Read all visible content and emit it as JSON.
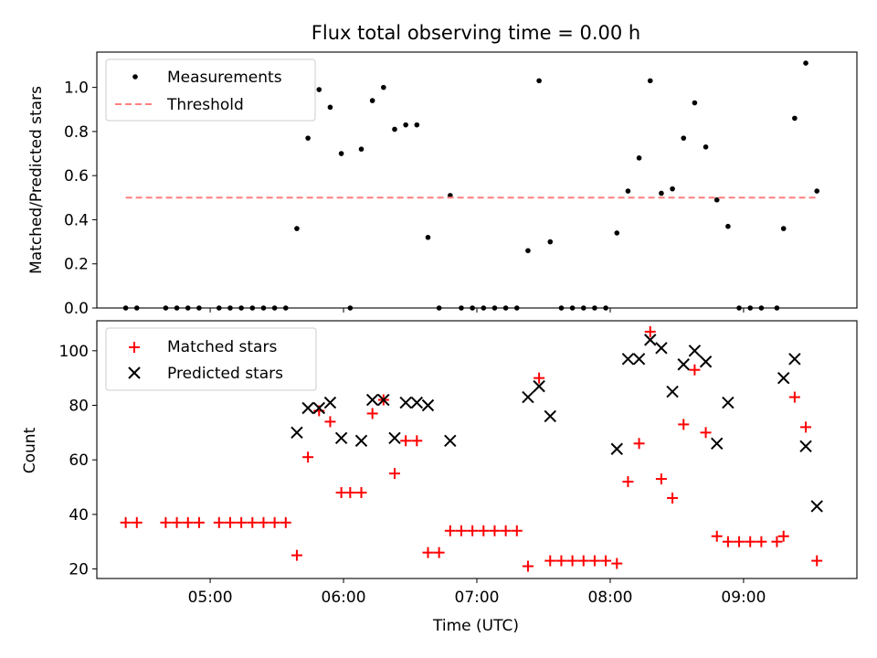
{
  "chart_data": {
    "title": "Flux total observing time = 0.00 h",
    "xlabel": "Time (UTC)",
    "x_tick_labels": [
      "05:00",
      "06:00",
      "07:00",
      "08:00",
      "09:00"
    ],
    "panels": [
      {
        "type": "scatter",
        "ylabel": "Matched/Predicted stars",
        "ylim": [
          0,
          1.16
        ],
        "y_ticks": [
          0.0,
          0.2,
          0.4,
          0.6,
          0.8,
          1.0
        ],
        "y_tick_labels": [
          "0.0",
          "0.2",
          "0.4",
          "0.6",
          "0.8",
          "1.0"
        ],
        "legend_position": "top-left",
        "series": [
          {
            "name": "Measurements",
            "marker": "dot",
            "color": "#000000",
            "points": [
              [
                "04:22",
                0.0
              ],
              [
                "04:27",
                0.0
              ],
              [
                "04:40",
                0.0
              ],
              [
                "04:45",
                0.0
              ],
              [
                "04:50",
                0.0
              ],
              [
                "04:55",
                0.0
              ],
              [
                "05:04",
                0.0
              ],
              [
                "05:09",
                0.0
              ],
              [
                "05:14",
                0.0
              ],
              [
                "05:19",
                0.0
              ],
              [
                "05:24",
                0.0
              ],
              [
                "05:29",
                0.0
              ],
              [
                "05:34",
                0.0
              ],
              [
                "05:39",
                0.36
              ],
              [
                "05:44",
                0.77
              ],
              [
                "05:49",
                0.99
              ],
              [
                "05:54",
                0.91
              ],
              [
                "05:59",
                0.7
              ],
              [
                "06:03",
                0.0
              ],
              [
                "06:08",
                0.72
              ],
              [
                "06:13",
                0.94
              ],
              [
                "06:18",
                1.0
              ],
              [
                "06:23",
                0.81
              ],
              [
                "06:28",
                0.83
              ],
              [
                "06:33",
                0.83
              ],
              [
                "06:38",
                0.32
              ],
              [
                "06:43",
                0.0
              ],
              [
                "06:48",
                0.51
              ],
              [
                "06:53",
                0.0
              ],
              [
                "06:58",
                0.0
              ],
              [
                "07:03",
                0.0
              ],
              [
                "07:08",
                0.0
              ],
              [
                "07:13",
                0.0
              ],
              [
                "07:18",
                0.0
              ],
              [
                "07:23",
                0.26
              ],
              [
                "07:28",
                1.03
              ],
              [
                "07:33",
                0.3
              ],
              [
                "07:38",
                0.0
              ],
              [
                "07:43",
                0.0
              ],
              [
                "07:48",
                0.0
              ],
              [
                "07:53",
                0.0
              ],
              [
                "07:58",
                0.0
              ],
              [
                "08:03",
                0.34
              ],
              [
                "08:08",
                0.53
              ],
              [
                "08:13",
                0.68
              ],
              [
                "08:18",
                1.03
              ],
              [
                "08:23",
                0.52
              ],
              [
                "08:28",
                0.54
              ],
              [
                "08:33",
                0.77
              ],
              [
                "08:38",
                0.93
              ],
              [
                "08:43",
                0.73
              ],
              [
                "08:48",
                0.49
              ],
              [
                "08:53",
                0.37
              ],
              [
                "08:58",
                0.0
              ],
              [
                "09:03",
                0.0
              ],
              [
                "09:08",
                0.0
              ],
              [
                "09:15",
                0.0
              ],
              [
                "09:18",
                0.36
              ],
              [
                "09:23",
                0.86
              ],
              [
                "09:28",
                1.11
              ],
              [
                "09:33",
                0.53
              ]
            ]
          },
          {
            "name": "Threshold",
            "marker": "dashed-line",
            "color": "#ff7f7f",
            "points": [
              [
                "04:22",
                0.5
              ],
              [
                "09:33",
                0.5
              ]
            ]
          }
        ]
      },
      {
        "type": "scatter",
        "ylabel": "Count",
        "ylim": [
          16.5,
          111
        ],
        "y_ticks": [
          20,
          40,
          60,
          80,
          100
        ],
        "y_tick_labels": [
          "20",
          "40",
          "60",
          "80",
          "100"
        ],
        "legend_position": "top-left",
        "series": [
          {
            "name": "Matched stars",
            "marker": "plus",
            "color": "#ff0000",
            "points": [
              [
                "04:22",
                37
              ],
              [
                "04:27",
                37
              ],
              [
                "04:40",
                37
              ],
              [
                "04:45",
                37
              ],
              [
                "04:50",
                37
              ],
              [
                "04:55",
                37
              ],
              [
                "05:04",
                37
              ],
              [
                "05:09",
                37
              ],
              [
                "05:14",
                37
              ],
              [
                "05:19",
                37
              ],
              [
                "05:24",
                37
              ],
              [
                "05:29",
                37
              ],
              [
                "05:34",
                37
              ],
              [
                "05:39",
                25
              ],
              [
                "05:44",
                61
              ],
              [
                "05:49",
                78
              ],
              [
                "05:54",
                74
              ],
              [
                "05:59",
                48
              ],
              [
                "06:03",
                48
              ],
              [
                "06:08",
                48
              ],
              [
                "06:13",
                77
              ],
              [
                "06:18",
                82
              ],
              [
                "06:23",
                55
              ],
              [
                "06:28",
                67
              ],
              [
                "06:33",
                67
              ],
              [
                "06:38",
                26
              ],
              [
                "06:43",
                26
              ],
              [
                "06:48",
                34
              ],
              [
                "06:53",
                34
              ],
              [
                "06:58",
                34
              ],
              [
                "07:03",
                34
              ],
              [
                "07:08",
                34
              ],
              [
                "07:13",
                34
              ],
              [
                "07:18",
                34
              ],
              [
                "07:23",
                21
              ],
              [
                "07:28",
                90
              ],
              [
                "07:33",
                23
              ],
              [
                "07:38",
                23
              ],
              [
                "07:43",
                23
              ],
              [
                "07:48",
                23
              ],
              [
                "07:53",
                23
              ],
              [
                "07:58",
                23
              ],
              [
                "08:03",
                22
              ],
              [
                "08:08",
                52
              ],
              [
                "08:13",
                66
              ],
              [
                "08:18",
                107
              ],
              [
                "08:23",
                53
              ],
              [
                "08:28",
                46
              ],
              [
                "08:33",
                73
              ],
              [
                "08:38",
                93
              ],
              [
                "08:43",
                70
              ],
              [
                "08:48",
                32
              ],
              [
                "08:53",
                30
              ],
              [
                "08:58",
                30
              ],
              [
                "09:03",
                30
              ],
              [
                "09:08",
                30
              ],
              [
                "09:15",
                30
              ],
              [
                "09:18",
                32
              ],
              [
                "09:23",
                83
              ],
              [
                "09:28",
                72
              ],
              [
                "09:33",
                23
              ]
            ]
          },
          {
            "name": "Predicted stars",
            "marker": "x",
            "color": "#000000",
            "points": [
              [
                "05:39",
                70
              ],
              [
                "05:44",
                79
              ],
              [
                "05:49",
                79
              ],
              [
                "05:54",
                81
              ],
              [
                "05:59",
                68
              ],
              [
                "06:08",
                67
              ],
              [
                "06:13",
                82
              ],
              [
                "06:18",
                82
              ],
              [
                "06:23",
                68
              ],
              [
                "06:28",
                81
              ],
              [
                "06:33",
                81
              ],
              [
                "06:38",
                80
              ],
              [
                "06:48",
                67
              ],
              [
                "07:23",
                83
              ],
              [
                "07:28",
                87
              ],
              [
                "07:33",
                76
              ],
              [
                "08:03",
                64
              ],
              [
                "08:08",
                97
              ],
              [
                "08:13",
                97
              ],
              [
                "08:18",
                104
              ],
              [
                "08:23",
                101
              ],
              [
                "08:28",
                85
              ],
              [
                "08:33",
                95
              ],
              [
                "08:38",
                100
              ],
              [
                "08:43",
                96
              ],
              [
                "08:48",
                66
              ],
              [
                "08:53",
                81
              ],
              [
                "09:18",
                90
              ],
              [
                "09:23",
                97
              ],
              [
                "09:28",
                65
              ],
              [
                "09:33",
                43
              ]
            ]
          }
        ]
      }
    ]
  }
}
